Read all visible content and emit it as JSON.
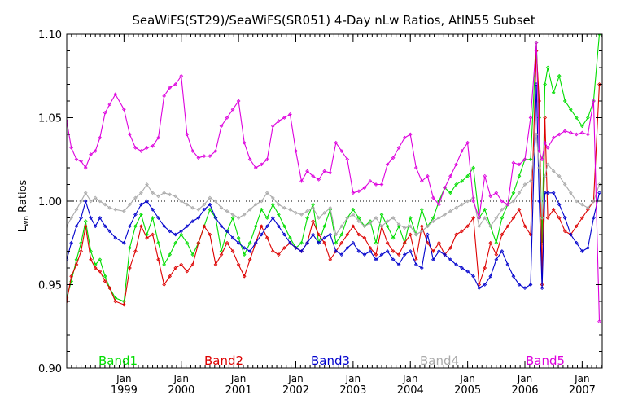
{
  "chart_data": {
    "type": "line",
    "title": "SeaWiFS(ST29)/SeaWiFS(SR051) 4-Day nLw Ratios, AtlN55 Subset",
    "ylabel": "Lwn Ratios",
    "ylabel_main": "L",
    "ylabel_sub": "wn",
    "ylabel_rest": " Ratios",
    "xlabel": "",
    "xlim": [
      1998.0,
      2007.35
    ],
    "ylim": [
      0.9,
      1.1
    ],
    "yticks": [
      "0.90",
      "0.95",
      "1.00",
      "1.05",
      "1.10"
    ],
    "yvalues": [
      0.9,
      0.95,
      1.0,
      1.05,
      1.1
    ],
    "xticks_month": [
      "Jan",
      "Jan",
      "Jan",
      "Jan",
      "Jan",
      "Jan",
      "Jan",
      "Jan",
      "Jan"
    ],
    "xticks_year": [
      "1999",
      "2000",
      "2001",
      "2002",
      "2003",
      "2004",
      "2005",
      "2006",
      "2007"
    ],
    "xtick_positions": [
      1999,
      2000,
      2001,
      2002,
      2003,
      2004,
      2005,
      2006,
      2007
    ],
    "reference_line": 1.0,
    "legend_placement": "bottom",
    "series": [
      {
        "name": "Band1",
        "color": "#00dd00",
        "x": [
          1998.0,
          1998.08,
          1998.17,
          1998.25,
          1998.33,
          1998.42,
          1998.5,
          1998.58,
          1998.67,
          1998.75,
          1998.85,
          1999.0,
          1999.1,
          1999.2,
          1999.3,
          1999.4,
          1999.5,
          1999.6,
          1999.7,
          1999.8,
          1999.9,
          2000.0,
          2000.1,
          2000.2,
          2000.3,
          2000.4,
          2000.5,
          2000.6,
          2000.7,
          2000.8,
          2000.9,
          2001.0,
          2001.1,
          2001.2,
          2001.3,
          2001.4,
          2001.5,
          2001.6,
          2001.7,
          2001.8,
          2001.9,
          2002.0,
          2002.1,
          2002.2,
          2002.3,
          2002.4,
          2002.5,
          2002.6,
          2002.7,
          2002.8,
          2002.9,
          2003.0,
          2003.1,
          2003.2,
          2003.3,
          2003.4,
          2003.5,
          2003.6,
          2003.7,
          2003.8,
          2003.9,
          2004.0,
          2004.1,
          2004.2,
          2004.3,
          2004.4,
          2004.5,
          2004.6,
          2004.7,
          2004.8,
          2004.9,
          2005.0,
          2005.1,
          2005.2,
          2005.3,
          2005.4,
          2005.5,
          2005.6,
          2005.7,
          2005.8,
          2005.9,
          2006.0,
          2006.1,
          2006.2,
          2006.25,
          2006.3,
          2006.35,
          2006.4,
          2006.5,
          2006.6,
          2006.7,
          2006.8,
          2006.9,
          2007.0,
          2007.1,
          2007.2,
          2007.3
        ],
        "y": [
          0.942,
          0.952,
          0.965,
          0.975,
          0.988,
          0.97,
          0.962,
          0.965,
          0.955,
          0.948,
          0.942,
          0.94,
          0.972,
          0.985,
          0.992,
          0.98,
          0.99,
          0.975,
          0.962,
          0.968,
          0.975,
          0.98,
          0.975,
          0.968,
          0.975,
          0.985,
          0.995,
          0.99,
          0.97,
          0.982,
          0.99,
          0.978,
          0.968,
          0.975,
          0.985,
          0.995,
          0.99,
          0.998,
          0.992,
          0.985,
          0.978,
          0.972,
          0.975,
          0.99,
          0.998,
          0.975,
          0.985,
          0.995,
          0.975,
          0.98,
          0.99,
          0.995,
          0.99,
          0.985,
          0.988,
          0.975,
          0.992,
          0.985,
          0.978,
          0.985,
          0.975,
          0.99,
          0.98,
          0.995,
          0.985,
          0.99,
          1.0,
          1.008,
          1.005,
          1.01,
          1.012,
          1.015,
          1.02,
          0.99,
          0.995,
          0.985,
          0.975,
          0.99,
          0.998,
          1.005,
          1.015,
          1.025,
          1.025,
          1.095,
          1.05,
          0.975,
          1.07,
          1.08,
          1.065,
          1.075,
          1.06,
          1.055,
          1.05,
          1.045,
          1.05,
          1.06,
          1.1
        ]
      },
      {
        "name": "Band2",
        "color": "#dd0000",
        "x": [
          1998.0,
          1998.08,
          1998.17,
          1998.25,
          1998.33,
          1998.42,
          1998.5,
          1998.58,
          1998.67,
          1998.75,
          1998.85,
          1999.0,
          1999.1,
          1999.2,
          1999.3,
          1999.4,
          1999.5,
          1999.6,
          1999.7,
          1999.8,
          1999.9,
          2000.0,
          2000.1,
          2000.2,
          2000.3,
          2000.4,
          2000.5,
          2000.6,
          2000.7,
          2000.8,
          2000.9,
          2001.0,
          2001.1,
          2001.2,
          2001.3,
          2001.4,
          2001.5,
          2001.6,
          2001.7,
          2001.8,
          2001.9,
          2002.0,
          2002.1,
          2002.2,
          2002.3,
          2002.4,
          2002.5,
          2002.6,
          2002.7,
          2002.8,
          2002.9,
          2003.0,
          2003.1,
          2003.2,
          2003.3,
          2003.4,
          2003.5,
          2003.6,
          2003.7,
          2003.8,
          2003.9,
          2004.0,
          2004.1,
          2004.2,
          2004.3,
          2004.4,
          2004.5,
          2004.6,
          2004.7,
          2004.8,
          2004.9,
          2005.0,
          2005.1,
          2005.2,
          2005.3,
          2005.4,
          2005.5,
          2005.6,
          2005.7,
          2005.8,
          2005.9,
          2006.0,
          2006.1,
          2006.2,
          2006.25,
          2006.3,
          2006.35,
          2006.4,
          2006.5,
          2006.6,
          2006.7,
          2006.8,
          2006.9,
          2007.0,
          2007.1,
          2007.2,
          2007.3
        ],
        "y": [
          0.94,
          0.955,
          0.962,
          0.97,
          0.985,
          0.965,
          0.96,
          0.958,
          0.952,
          0.948,
          0.94,
          0.938,
          0.96,
          0.97,
          0.985,
          0.978,
          0.98,
          0.965,
          0.95,
          0.955,
          0.96,
          0.962,
          0.958,
          0.962,
          0.975,
          0.985,
          0.98,
          0.962,
          0.968,
          0.975,
          0.97,
          0.962,
          0.955,
          0.965,
          0.975,
          0.985,
          0.978,
          0.97,
          0.968,
          0.972,
          0.975,
          0.972,
          0.97,
          0.975,
          0.988,
          0.98,
          0.975,
          0.965,
          0.97,
          0.975,
          0.98,
          0.985,
          0.98,
          0.978,
          0.972,
          0.968,
          0.985,
          0.975,
          0.97,
          0.968,
          0.975,
          0.98,
          0.965,
          0.985,
          0.975,
          0.97,
          0.975,
          0.968,
          0.972,
          0.98,
          0.982,
          0.985,
          0.99,
          0.95,
          0.96,
          0.975,
          0.968,
          0.98,
          0.985,
          0.99,
          0.995,
          0.985,
          0.98,
          1.09,
          1.06,
          0.95,
          1.05,
          0.99,
          0.995,
          0.99,
          0.982,
          0.98,
          0.985,
          0.99,
          0.995,
          1.0,
          1.07
        ]
      },
      {
        "name": "Band3",
        "color": "#0000cc",
        "x": [
          1998.0,
          1998.08,
          1998.17,
          1998.25,
          1998.33,
          1998.42,
          1998.5,
          1998.58,
          1998.67,
          1998.75,
          1998.85,
          1999.0,
          1999.1,
          1999.2,
          1999.3,
          1999.4,
          1999.5,
          1999.6,
          1999.7,
          1999.8,
          1999.9,
          2000.0,
          2000.1,
          2000.2,
          2000.3,
          2000.4,
          2000.5,
          2000.6,
          2000.7,
          2000.8,
          2000.9,
          2001.0,
          2001.1,
          2001.2,
          2001.3,
          2001.4,
          2001.5,
          2001.6,
          2001.7,
          2001.8,
          2001.9,
          2002.0,
          2002.1,
          2002.2,
          2002.3,
          2002.4,
          2002.5,
          2002.6,
          2002.7,
          2002.8,
          2002.9,
          2003.0,
          2003.1,
          2003.2,
          2003.3,
          2003.4,
          2003.5,
          2003.6,
          2003.7,
          2003.8,
          2003.9,
          2004.0,
          2004.1,
          2004.2,
          2004.3,
          2004.4,
          2004.5,
          2004.6,
          2004.7,
          2004.8,
          2004.9,
          2005.0,
          2005.1,
          2005.2,
          2005.3,
          2005.4,
          2005.5,
          2005.6,
          2005.7,
          2005.8,
          2005.9,
          2006.0,
          2006.1,
          2006.2,
          2006.25,
          2006.3,
          2006.35,
          2006.4,
          2006.5,
          2006.6,
          2006.7,
          2006.8,
          2006.9,
          2007.0,
          2007.1,
          2007.2,
          2007.3
        ],
        "y": [
          0.965,
          0.975,
          0.985,
          0.99,
          1.0,
          0.99,
          0.985,
          0.99,
          0.985,
          0.982,
          0.978,
          0.975,
          0.985,
          0.992,
          0.998,
          1.0,
          0.995,
          0.99,
          0.985,
          0.982,
          0.98,
          0.982,
          0.985,
          0.988,
          0.99,
          0.995,
          0.998,
          0.99,
          0.985,
          0.982,
          0.978,
          0.975,
          0.972,
          0.97,
          0.975,
          0.98,
          0.985,
          0.99,
          0.985,
          0.98,
          0.975,
          0.972,
          0.97,
          0.975,
          0.98,
          0.975,
          0.978,
          0.98,
          0.97,
          0.968,
          0.972,
          0.975,
          0.97,
          0.968,
          0.97,
          0.965,
          0.968,
          0.97,
          0.965,
          0.962,
          0.968,
          0.97,
          0.962,
          0.96,
          0.98,
          0.965,
          0.97,
          0.968,
          0.965,
          0.962,
          0.96,
          0.958,
          0.955,
          0.948,
          0.95,
          0.955,
          0.965,
          0.97,
          0.962,
          0.955,
          0.95,
          0.948,
          0.95,
          1.07,
          1.0,
          0.948,
          1.005,
          1.005,
          1.005,
          0.998,
          0.99,
          0.98,
          0.975,
          0.97,
          0.972,
          0.99,
          1.005
        ]
      },
      {
        "name": "Band4",
        "color": "#aaaaaa",
        "x": [
          1998.0,
          1998.08,
          1998.17,
          1998.25,
          1998.33,
          1998.42,
          1998.5,
          1998.58,
          1998.67,
          1998.75,
          1998.85,
          1999.0,
          1999.1,
          1999.2,
          1999.3,
          1999.4,
          1999.5,
          1999.6,
          1999.7,
          1999.8,
          1999.9,
          2000.0,
          2000.1,
          2000.2,
          2000.3,
          2000.4,
          2000.5,
          2000.6,
          2000.7,
          2000.8,
          2000.9,
          2001.0,
          2001.1,
          2001.2,
          2001.3,
          2001.4,
          2001.5,
          2001.6,
          2001.7,
          2001.8,
          2001.9,
          2002.0,
          2002.1,
          2002.2,
          2002.3,
          2002.4,
          2002.5,
          2002.6,
          2002.7,
          2002.8,
          2002.9,
          2003.0,
          2003.1,
          2003.2,
          2003.3,
          2003.4,
          2003.5,
          2003.6,
          2003.7,
          2003.8,
          2003.9,
          2004.0,
          2004.1,
          2004.2,
          2004.3,
          2004.4,
          2004.5,
          2004.6,
          2004.7,
          2004.8,
          2004.9,
          2005.0,
          2005.1,
          2005.2,
          2005.3,
          2005.4,
          2005.5,
          2005.6,
          2005.7,
          2005.8,
          2005.9,
          2006.0,
          2006.1,
          2006.2,
          2006.25,
          2006.3,
          2006.35,
          2006.4,
          2006.5,
          2006.6,
          2006.7,
          2006.8,
          2006.9,
          2007.0,
          2007.1,
          2007.2,
          2007.3
        ],
        "y": [
          0.985,
          0.99,
          0.995,
          1.0,
          1.005,
          1.0,
          1.002,
          1.0,
          0.998,
          0.996,
          0.995,
          0.994,
          0.998,
          1.002,
          1.005,
          1.01,
          1.005,
          1.003,
          1.005,
          1.004,
          1.003,
          1.0,
          0.998,
          0.996,
          0.995,
          0.998,
          1.002,
          1.0,
          0.996,
          0.994,
          0.992,
          0.99,
          0.992,
          0.995,
          0.998,
          1.0,
          1.005,
          1.002,
          0.998,
          0.996,
          0.995,
          0.993,
          0.992,
          0.994,
          0.996,
          0.99,
          0.993,
          0.996,
          0.98,
          0.985,
          0.99,
          0.992,
          0.988,
          0.985,
          0.987,
          0.99,
          0.985,
          0.988,
          0.99,
          0.986,
          0.984,
          0.985,
          0.98,
          0.982,
          0.985,
          0.988,
          0.99,
          0.992,
          0.994,
          0.996,
          0.998,
          1.0,
          1.002,
          0.985,
          0.99,
          0.985,
          0.99,
          0.995,
          0.998,
          1.0,
          1.005,
          1.01,
          1.012,
          1.04,
          1.02,
          0.99,
          1.015,
          1.022,
          1.018,
          1.015,
          1.01,
          1.005,
          1.0,
          0.998,
          0.996,
          1.0,
          1.01
        ]
      },
      {
        "name": "Band5",
        "color": "#dd00dd",
        "x": [
          1998.0,
          1998.08,
          1998.17,
          1998.25,
          1998.33,
          1998.42,
          1998.5,
          1998.58,
          1998.67,
          1998.75,
          1998.85,
          1999.0,
          1999.1,
          1999.2,
          1999.3,
          1999.4,
          1999.5,
          1999.6,
          1999.7,
          1999.8,
          1999.9,
          2000.0,
          2000.1,
          2000.2,
          2000.3,
          2000.4,
          2000.5,
          2000.6,
          2000.7,
          2000.8,
          2000.9,
          2001.0,
          2001.1,
          2001.2,
          2001.3,
          2001.4,
          2001.5,
          2001.6,
          2001.7,
          2001.8,
          2001.9,
          2002.0,
          2002.1,
          2002.2,
          2002.3,
          2002.4,
          2002.5,
          2002.6,
          2002.7,
          2002.8,
          2002.9,
          2003.0,
          2003.1,
          2003.2,
          2003.3,
          2003.4,
          2003.5,
          2003.6,
          2003.7,
          2003.8,
          2003.9,
          2004.0,
          2004.1,
          2004.2,
          2004.3,
          2004.4,
          2004.5,
          2004.6,
          2004.7,
          2004.8,
          2004.9,
          2005.0,
          2005.1,
          2005.2,
          2005.3,
          2005.4,
          2005.5,
          2005.6,
          2005.7,
          2005.8,
          2005.9,
          2006.0,
          2006.1,
          2006.2,
          2006.25,
          2006.3,
          2006.35,
          2006.4,
          2006.5,
          2006.6,
          2006.7,
          2006.8,
          2006.9,
          2007.0,
          2007.1,
          2007.2,
          2007.3
        ],
        "y": [
          1.048,
          1.032,
          1.025,
          1.024,
          1.02,
          1.028,
          1.03,
          1.038,
          1.053,
          1.058,
          1.064,
          1.055,
          1.04,
          1.032,
          1.03,
          1.032,
          1.033,
          1.038,
          1.063,
          1.068,
          1.07,
          1.075,
          1.04,
          1.03,
          1.026,
          1.027,
          1.027,
          1.03,
          1.045,
          1.05,
          1.055,
          1.06,
          1.035,
          1.025,
          1.02,
          1.022,
          1.025,
          1.045,
          1.048,
          1.05,
          1.052,
          1.03,
          1.012,
          1.018,
          1.015,
          1.013,
          1.018,
          1.017,
          1.035,
          1.03,
          1.025,
          1.005,
          1.006,
          1.008,
          1.012,
          1.01,
          1.01,
          1.022,
          1.026,
          1.032,
          1.038,
          1.04,
          1.02,
          1.012,
          1.015,
          1.002,
          0.998,
          1.008,
          1.015,
          1.022,
          1.03,
          1.035,
          1.0,
          0.99,
          1.015,
          1.003,
          1.005,
          1.0,
          0.998,
          1.023,
          1.022,
          1.025,
          1.05,
          1.095,
          1.03,
          1.025,
          1.035,
          1.032,
          1.038,
          1.04,
          1.042,
          1.041,
          1.04,
          1.041,
          1.04,
          1.06,
          0.928
        ]
      }
    ]
  }
}
